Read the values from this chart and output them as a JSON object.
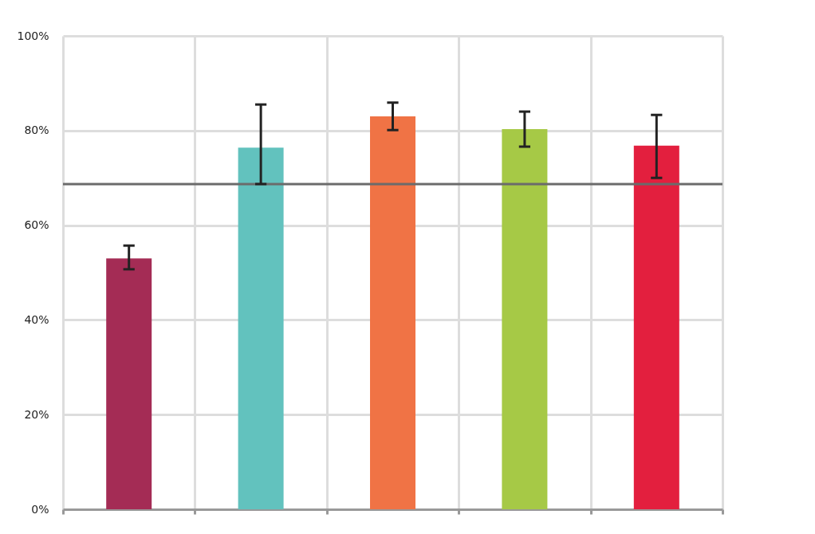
{
  "chart_data": {
    "type": "bar",
    "categories": [
      null,
      null,
      null,
      null,
      null
    ],
    "values": [
      53.0,
      76.4,
      83.0,
      80.3,
      76.8
    ],
    "colors": [
      "#a42c55",
      "#62c2be",
      "#f07345",
      "#a6c946",
      "#e31f3e"
    ],
    "errors": [
      [
        50.7,
        55.7
      ],
      [
        68.7,
        85.5
      ],
      [
        80.1,
        85.9
      ],
      [
        76.6,
        84.0
      ],
      [
        70.0,
        83.3
      ]
    ],
    "ylim": [
      0,
      100
    ],
    "yticks": [
      {
        "value": 0,
        "label": "0%"
      },
      {
        "value": 20,
        "label": "20%"
      },
      {
        "value": 40,
        "label": "40%"
      },
      {
        "value": 60,
        "label": "60%"
      },
      {
        "value": 80,
        "label": "80%"
      },
      {
        "value": 100,
        "label": "100%"
      }
    ],
    "ref_lines": [
      {
        "axis": "y",
        "value": 68.7,
        "label": null,
        "color": "#6b6b6b"
      }
    ],
    "grid": true,
    "tick_labels": "y"
  }
}
